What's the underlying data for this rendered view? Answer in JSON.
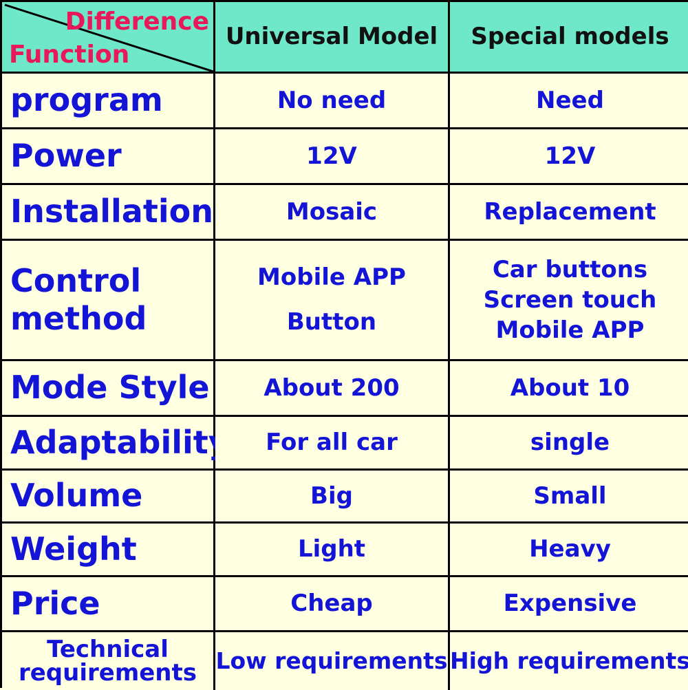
{
  "header": {
    "difference": "Difference",
    "function": "Function",
    "col1": "Universal Model",
    "col2": "Special models"
  },
  "colors": {
    "header_bg": "#6ee8c8",
    "cell_bg": "#fefee0",
    "text_blue": "#1414d6",
    "text_red": "#e8185a"
  },
  "rows": [
    {
      "function": "program",
      "universal": "No need",
      "special": "Need"
    },
    {
      "function": "Power",
      "universal": "12V",
      "special": "12V"
    },
    {
      "function": "Installation",
      "universal": "Mosaic",
      "special": "Replacement"
    },
    {
      "function_lines": [
        "Control",
        "method"
      ],
      "universal_lines": [
        "Mobile APP",
        "Button"
      ],
      "special_lines": [
        "Car buttons",
        "Screen touch",
        "Mobile APP"
      ]
    },
    {
      "function": "Mode Style",
      "universal": "About 200",
      "special": "About 10"
    },
    {
      "function": "Adaptability",
      "universal": "For all car",
      "special": "single"
    },
    {
      "function": "Volume",
      "universal": "Big",
      "special": "Small"
    },
    {
      "function": "Weight",
      "universal": "Light",
      "special": "Heavy"
    },
    {
      "function": "Price",
      "universal": "Cheap",
      "special": "Expensive"
    },
    {
      "function_lines": [
        "Technical",
        "requirements"
      ],
      "universal": "Low requirements",
      "special": "High requirements"
    }
  ]
}
